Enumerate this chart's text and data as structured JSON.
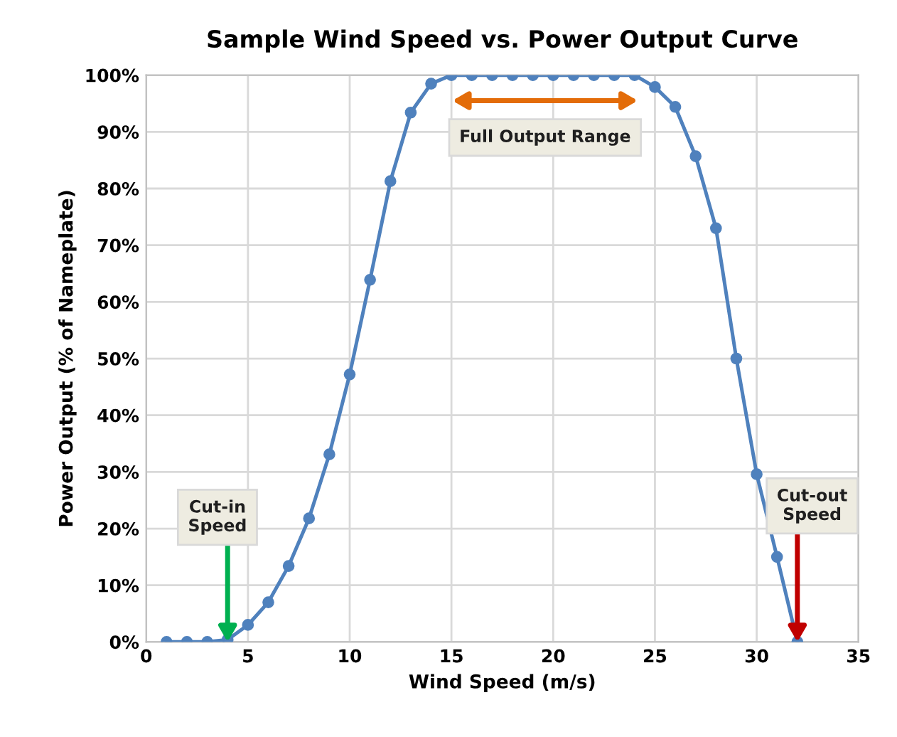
{
  "chart_data": {
    "type": "line",
    "title": "Sample Wind Speed vs. Power Output Curve",
    "xlabel": "Wind Speed (m/s)",
    "ylabel": "Power Output (% of Nameplate)",
    "x": [
      1,
      2,
      3,
      4,
      5,
      6,
      7,
      8,
      9,
      10,
      11,
      12,
      13,
      14,
      15,
      16,
      17,
      18,
      19,
      20,
      21,
      22,
      23,
      24,
      25,
      26,
      27,
      28,
      29,
      30,
      31,
      32
    ],
    "series": [
      {
        "color": "#4f81bd",
        "values": [
          0,
          0,
          0,
          0.4,
          3,
          7,
          13.4,
          21.8,
          33.1,
          47.2,
          63.9,
          81.3,
          93.4,
          98.5,
          100,
          100,
          100,
          100,
          100,
          100,
          100,
          100,
          100,
          100,
          97.9,
          94.4,
          85.7,
          73,
          50,
          29.6,
          15,
          0
        ]
      }
    ],
    "xlim": [
      0,
      35
    ],
    "xticks": [
      0,
      5,
      10,
      15,
      20,
      25,
      30,
      35
    ],
    "ylim": [
      0,
      100
    ],
    "yticks": [
      {
        "value": 0,
        "label": "0%"
      },
      {
        "value": 10,
        "label": "10%"
      },
      {
        "value": 20,
        "label": "20%"
      },
      {
        "value": 30,
        "label": "30%"
      },
      {
        "value": 40,
        "label": "40%"
      },
      {
        "value": 50,
        "label": "50%"
      },
      {
        "value": 60,
        "label": "60%"
      },
      {
        "value": 70,
        "label": "70%"
      },
      {
        "value": 80,
        "label": "80%"
      },
      {
        "value": 90,
        "label": "90%"
      },
      {
        "value": 100,
        "label": "100%"
      }
    ],
    "annotations": [
      {
        "text": "Cut-in\nSpeed",
        "x": 4,
        "y": 0
      },
      {
        "text": "Cut-out\nSpeed",
        "x": 32,
        "y": 0
      },
      "Full Output Range"
    ],
    "grid": true,
    "marker": "circle",
    "line_style": "solid"
  }
}
